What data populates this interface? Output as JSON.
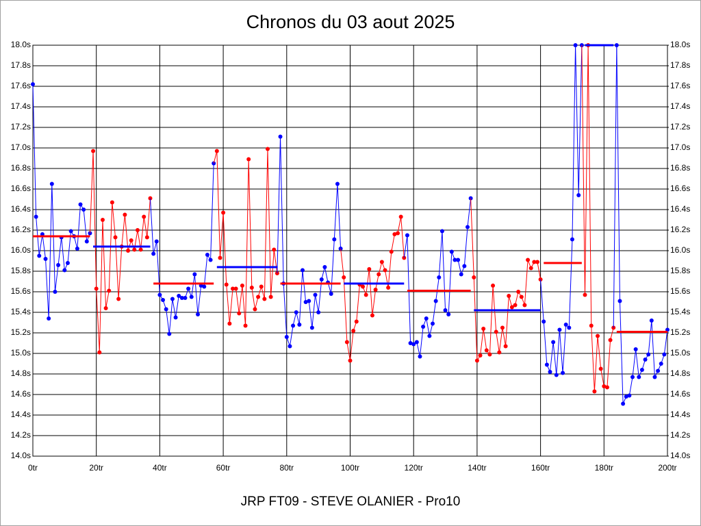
{
  "chart_data": {
    "type": "line",
    "title": "Chronos du 03 aout 2025",
    "xlabel": "JRP FT09 - STEVE OLANIER - Pro10",
    "xlim": [
      0,
      200
    ],
    "ylim": [
      14.0,
      18.0
    ],
    "y2lim": [
      14.0,
      18.0
    ],
    "grid": true,
    "xticks": [
      {
        "value": 0,
        "label": "0tr"
      },
      {
        "value": 20,
        "label": "20tr"
      },
      {
        "value": 40,
        "label": "40tr"
      },
      {
        "value": 60,
        "label": "60tr"
      },
      {
        "value": 80,
        "label": "80tr"
      },
      {
        "value": 100,
        "label": "100tr"
      },
      {
        "value": 120,
        "label": "120tr"
      },
      {
        "value": 140,
        "label": "140tr"
      },
      {
        "value": 160,
        "label": "160tr"
      },
      {
        "value": 180,
        "label": "180tr"
      },
      {
        "value": 200,
        "label": "200tr"
      }
    ],
    "yticks": [
      {
        "value": 14.0,
        "label": "14.0s"
      },
      {
        "value": 14.2,
        "label": "14.2s"
      },
      {
        "value": 14.4,
        "label": "14.4s"
      },
      {
        "value": 14.6,
        "label": "14.6s"
      },
      {
        "value": 14.8,
        "label": "14.8s"
      },
      {
        "value": 15.0,
        "label": "15.0s"
      },
      {
        "value": 15.2,
        "label": "15.2s"
      },
      {
        "value": 15.4,
        "label": "15.4s"
      },
      {
        "value": 15.6,
        "label": "15.6s"
      },
      {
        "value": 15.8,
        "label": "15.8s"
      },
      {
        "value": 16.0,
        "label": "16.0s"
      },
      {
        "value": 16.2,
        "label": "16.2s"
      },
      {
        "value": 16.4,
        "label": "16.4s"
      },
      {
        "value": 16.6,
        "label": "16.6s"
      },
      {
        "value": 16.8,
        "label": "16.8s"
      },
      {
        "value": 17.0,
        "label": "17.0s"
      },
      {
        "value": 17.2,
        "label": "17.2s"
      },
      {
        "value": 17.4,
        "label": "17.4s"
      },
      {
        "value": 17.6,
        "label": "17.6s"
      },
      {
        "value": 17.8,
        "label": "17.8s"
      },
      {
        "value": 18.0,
        "label": "18.0s"
      }
    ],
    "y2ticks": [
      {
        "value": 14.0,
        "label": "14.0s"
      },
      {
        "value": 14.2,
        "label": "14.2s"
      },
      {
        "value": 14.4,
        "label": "14.4s"
      },
      {
        "value": 14.6,
        "label": "14.6s"
      },
      {
        "value": 14.8,
        "label": "14.8s"
      },
      {
        "value": 15.0,
        "label": "15.0s"
      },
      {
        "value": 15.2,
        "label": "15.2s"
      },
      {
        "value": 15.4,
        "label": "15.4s"
      },
      {
        "value": 15.6,
        "label": "15.6s"
      },
      {
        "value": 15.8,
        "label": "15.8s"
      },
      {
        "value": 16.0,
        "label": "16.0s"
      },
      {
        "value": 16.2,
        "label": "16.2s"
      },
      {
        "value": 16.4,
        "label": "16.4s"
      },
      {
        "value": 16.6,
        "label": "16.6s"
      },
      {
        "value": 16.8,
        "label": "16.8s"
      },
      {
        "value": 17.0,
        "label": "17.0s"
      },
      {
        "value": 17.2,
        "label": "17.2s"
      },
      {
        "value": 17.4,
        "label": "17.4s"
      },
      {
        "value": 17.6,
        "label": "17.6s"
      },
      {
        "value": 17.8,
        "label": "17.8s"
      },
      {
        "value": 18.0,
        "label": "18.0s"
      }
    ],
    "series": [
      {
        "color": "#0000ff",
        "average": 16.14,
        "average_color": "#ff0000",
        "x": [
          0,
          1,
          2,
          3,
          4,
          5,
          6,
          7,
          8,
          9,
          10,
          11,
          12,
          13,
          14,
          15,
          16,
          17,
          18
        ],
        "values": [
          17.62,
          16.33,
          15.95,
          16.16,
          15.92,
          15.34,
          16.65,
          15.6,
          15.86,
          16.13,
          15.81,
          15.88,
          16.19,
          16.14,
          16.02,
          16.45,
          16.4,
          16.09,
          16.17
        ]
      },
      {
        "color": "#ff0000",
        "average": 16.04,
        "average_color": "#0000ff",
        "x": [
          19,
          20,
          21,
          22,
          23,
          24,
          25,
          26,
          27,
          28,
          29,
          30,
          31,
          32,
          33,
          34,
          35,
          36,
          37
        ],
        "values": [
          16.97,
          15.63,
          15.01,
          16.3,
          15.44,
          15.61,
          16.47,
          16.13,
          15.53,
          16.04,
          16.35,
          16.0,
          16.1,
          16.01,
          16.2,
          16.01,
          16.33,
          16.13,
          16.51
        ]
      },
      {
        "color": "#0000ff",
        "average": 15.68,
        "average_color": "#ff0000",
        "x": [
          38,
          39,
          40,
          41,
          42,
          43,
          44,
          45,
          46,
          47,
          48,
          49,
          50,
          51,
          52,
          53,
          54,
          55,
          56,
          57
        ],
        "values": [
          15.97,
          16.09,
          15.57,
          15.52,
          15.43,
          15.19,
          15.53,
          15.35,
          15.56,
          15.54,
          15.54,
          15.63,
          15.55,
          15.77,
          15.38,
          15.66,
          15.65,
          15.96,
          15.91,
          16.85
        ]
      },
      {
        "color": "#ff0000",
        "average": 15.84,
        "average_color": "#0000ff",
        "x": [
          58,
          59,
          60,
          61,
          62,
          63,
          64,
          65,
          66,
          67,
          68,
          69,
          70,
          71,
          72,
          73,
          74,
          75,
          76,
          77
        ],
        "values": [
          16.97,
          15.93,
          16.37,
          15.67,
          15.29,
          15.63,
          15.63,
          15.39,
          15.66,
          15.27,
          16.89,
          15.64,
          15.43,
          15.55,
          15.65,
          15.53,
          16.99,
          15.55,
          16.01,
          15.78
        ]
      },
      {
        "color": "#0000ff",
        "average": 15.68,
        "average_color": "#ff0000",
        "x": [
          78,
          79,
          80,
          81,
          82,
          83,
          84,
          85,
          86,
          87,
          88,
          89,
          90,
          91,
          92,
          93,
          94,
          95,
          96,
          97
        ],
        "values": [
          17.11,
          15.68,
          15.16,
          15.07,
          15.27,
          15.4,
          15.28,
          15.81,
          15.5,
          15.51,
          15.25,
          15.57,
          15.4,
          15.72,
          15.84,
          15.69,
          15.58,
          16.11,
          16.65,
          16.02
        ]
      },
      {
        "color": "#ff0000",
        "average": 15.68,
        "average_color": "#0000ff",
        "x": [
          98,
          99,
          100,
          101,
          102,
          103,
          104,
          105,
          106,
          107,
          108,
          109,
          110,
          111,
          112,
          113,
          114,
          115,
          116,
          117
        ],
        "values": [
          15.74,
          15.11,
          14.93,
          15.22,
          15.31,
          15.67,
          15.65,
          15.57,
          15.82,
          15.37,
          15.62,
          15.77,
          15.89,
          15.81,
          15.64,
          15.99,
          16.16,
          16.17,
          16.33,
          15.93
        ]
      },
      {
        "color": "#0000ff",
        "average": 15.61,
        "average_color": "#ff0000",
        "x": [
          118,
          119,
          120,
          121,
          122,
          123,
          124,
          125,
          126,
          127,
          128,
          129,
          130,
          131,
          132,
          133,
          134,
          135,
          136,
          137,
          138
        ],
        "values": [
          16.15,
          15.1,
          15.09,
          15.11,
          14.97,
          15.26,
          15.34,
          15.17,
          15.29,
          15.51,
          15.74,
          16.19,
          15.42,
          15.38,
          15.99,
          15.91,
          15.91,
          15.77,
          15.85,
          16.23,
          16.51
        ]
      },
      {
        "color": "#ff0000",
        "average": 15.42,
        "average_color": "#0000ff",
        "x": [
          139,
          140,
          141,
          142,
          143,
          144,
          145,
          146,
          147,
          148,
          149,
          150,
          151,
          152,
          153,
          154,
          155,
          156,
          157,
          158,
          159,
          160
        ],
        "values": [
          15.74,
          14.93,
          14.98,
          15.24,
          15.03,
          14.99,
          15.66,
          15.21,
          15.01,
          15.25,
          15.07,
          15.56,
          15.45,
          15.47,
          15.6,
          15.55,
          15.47,
          15.91,
          15.83,
          15.89,
          15.89,
          15.72
        ]
      },
      {
        "color": "#0000ff",
        "average": 15.88,
        "average_color": "#ff0000",
        "x": [
          161,
          162,
          163,
          164,
          165,
          166,
          167,
          168,
          169,
          170,
          171,
          172,
          173
        ],
        "values": [
          15.31,
          14.89,
          14.82,
          15.11,
          14.79,
          15.23,
          14.81,
          15.28,
          15.25,
          16.11,
          18.0,
          16.54,
          18.0
        ]
      },
      {
        "color": "#ff0000",
        "average": 18.0,
        "average_color": "#0000ff",
        "x": [
          174,
          175,
          176,
          177,
          178,
          179,
          180,
          181,
          182,
          183
        ],
        "values": [
          15.57,
          18.0,
          15.27,
          14.63,
          15.17,
          14.85,
          14.68,
          14.67,
          15.13,
          15.25
        ]
      },
      {
        "color": "#0000ff",
        "average": 15.21,
        "average_color": "#ff0000",
        "x": [
          184,
          185,
          186,
          187,
          188,
          189,
          190,
          191,
          192,
          193,
          194,
          195,
          196,
          197,
          198,
          199,
          200
        ],
        "values": [
          18.0,
          15.51,
          14.51,
          14.58,
          14.59,
          14.77,
          15.04,
          14.77,
          14.84,
          14.94,
          14.99,
          15.32,
          14.77,
          14.83,
          14.9,
          14.99,
          15.23
        ]
      }
    ]
  }
}
